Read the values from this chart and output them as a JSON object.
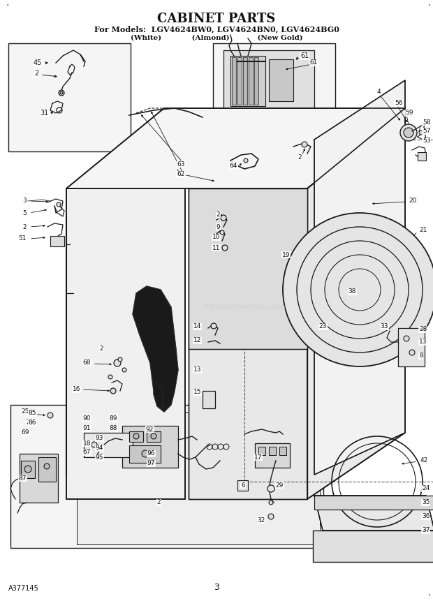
{
  "title_line1": "CABINET PARTS",
  "title_line2": "For Models:  LGV4624BW0, LGV4624BN0, LGV4624BG0",
  "title_line3": "              (White)           (Almond)         (New Gold)",
  "footer_left": "A377145",
  "footer_center": "3",
  "bg_color": "#ffffff",
  "lc": "#1a1a1a",
  "gray1": "#f5f5f5",
  "gray2": "#e8e8e8",
  "gray3": "#d0d0d0",
  "gray4": "#b0b0b0",
  "black": "#111111"
}
